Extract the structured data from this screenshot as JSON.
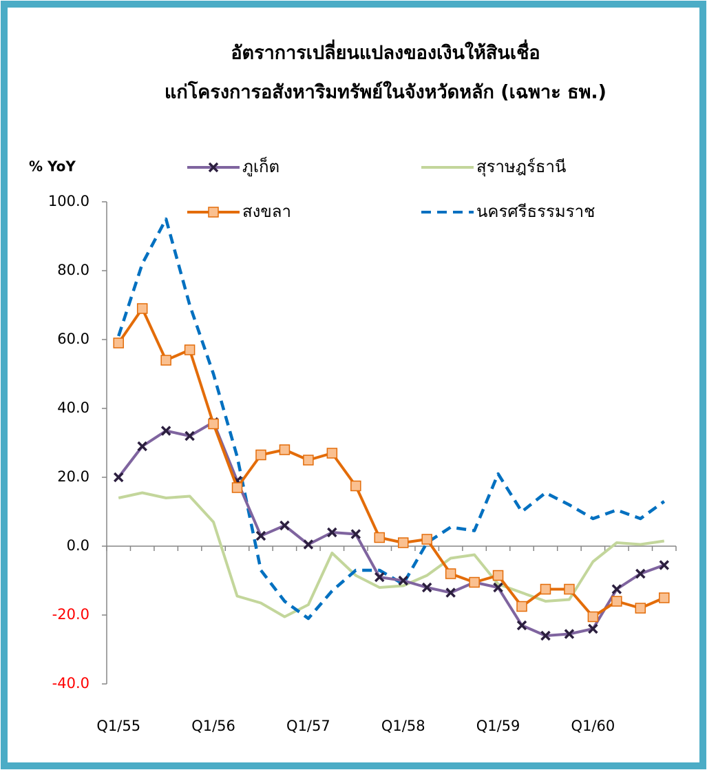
{
  "chart_data": {
    "type": "line",
    "title": [
      "อัตราการเปลี่ยนแปลงของเงินให้สินเชื่อ",
      "แก่โครงการอสังหาริมทรัพย์ในจังหวัดหลัก (เฉพาะ ธพ.)"
    ],
    "y_axis_label": "% YoY",
    "categories": [
      "Q1/55",
      null,
      null,
      null,
      "Q1/56",
      null,
      null,
      null,
      "Q1/57",
      null,
      null,
      null,
      "Q1/58",
      null,
      null,
      null,
      "Q1/59",
      null,
      null,
      null,
      "Q1/60",
      null,
      null,
      null
    ],
    "series": [
      {
        "name": "ภูเก็ต",
        "color": "#7f649f",
        "marker": "x",
        "values": [
          20,
          29,
          33.5,
          32,
          36,
          19,
          3,
          6,
          0.5,
          4,
          3.5,
          -9,
          -10,
          -12,
          -13.5,
          -10.5,
          -12,
          -23,
          -26,
          -25.5,
          -24,
          -12.5,
          -8,
          -5.5
        ]
      },
      {
        "name": "สุราษฎร์ธานี",
        "color": "#c3d69b",
        "marker": "none",
        "values": [
          14,
          15.5,
          14,
          14.5,
          7,
          -14.5,
          -16.5,
          -20.5,
          -17,
          -2,
          -8.5,
          -12,
          -11.5,
          -8.5,
          -3.5,
          -2.5,
          -11,
          -13.5,
          -16,
          -15.5,
          -4.5,
          1,
          0.5,
          1.5
        ]
      },
      {
        "name": "สงขลา",
        "color": "#e36c09",
        "marker": "square",
        "marker_fill": "#fac090",
        "values": [
          59,
          69,
          54,
          57,
          35.5,
          17,
          26.5,
          28,
          25,
          27,
          17.5,
          2.5,
          1,
          2,
          -8,
          -10.5,
          -8.5,
          -17.5,
          -12.5,
          -12.5,
          -20.5,
          -16,
          -18,
          -15
        ]
      },
      {
        "name": "นครศรีธรรมราช",
        "color": "#0070c0",
        "marker": "none",
        "dashed": true,
        "values": [
          61,
          82,
          95,
          70,
          50,
          26,
          -7,
          -16,
          -21,
          -13,
          -7,
          -7,
          -11,
          1,
          5.5,
          4.5,
          21,
          10,
          15.5,
          12,
          8,
          10.5,
          8,
          13
        ]
      }
    ],
    "ylim": [
      -40,
      100
    ],
    "yticks": [
      {
        "value": -40,
        "label": "-40.0"
      },
      {
        "value": -20,
        "label": "-20.0"
      },
      {
        "value": 0,
        "label": "0.0"
      },
      {
        "value": 20,
        "label": "20.0"
      },
      {
        "value": 40,
        "label": "40.0"
      },
      {
        "value": 60,
        "label": "60.0"
      },
      {
        "value": 80,
        "label": "80.0"
      },
      {
        "value": 100,
        "label": "100.0"
      }
    ],
    "negative_tick_color": "#ff0000",
    "grid": false
  }
}
